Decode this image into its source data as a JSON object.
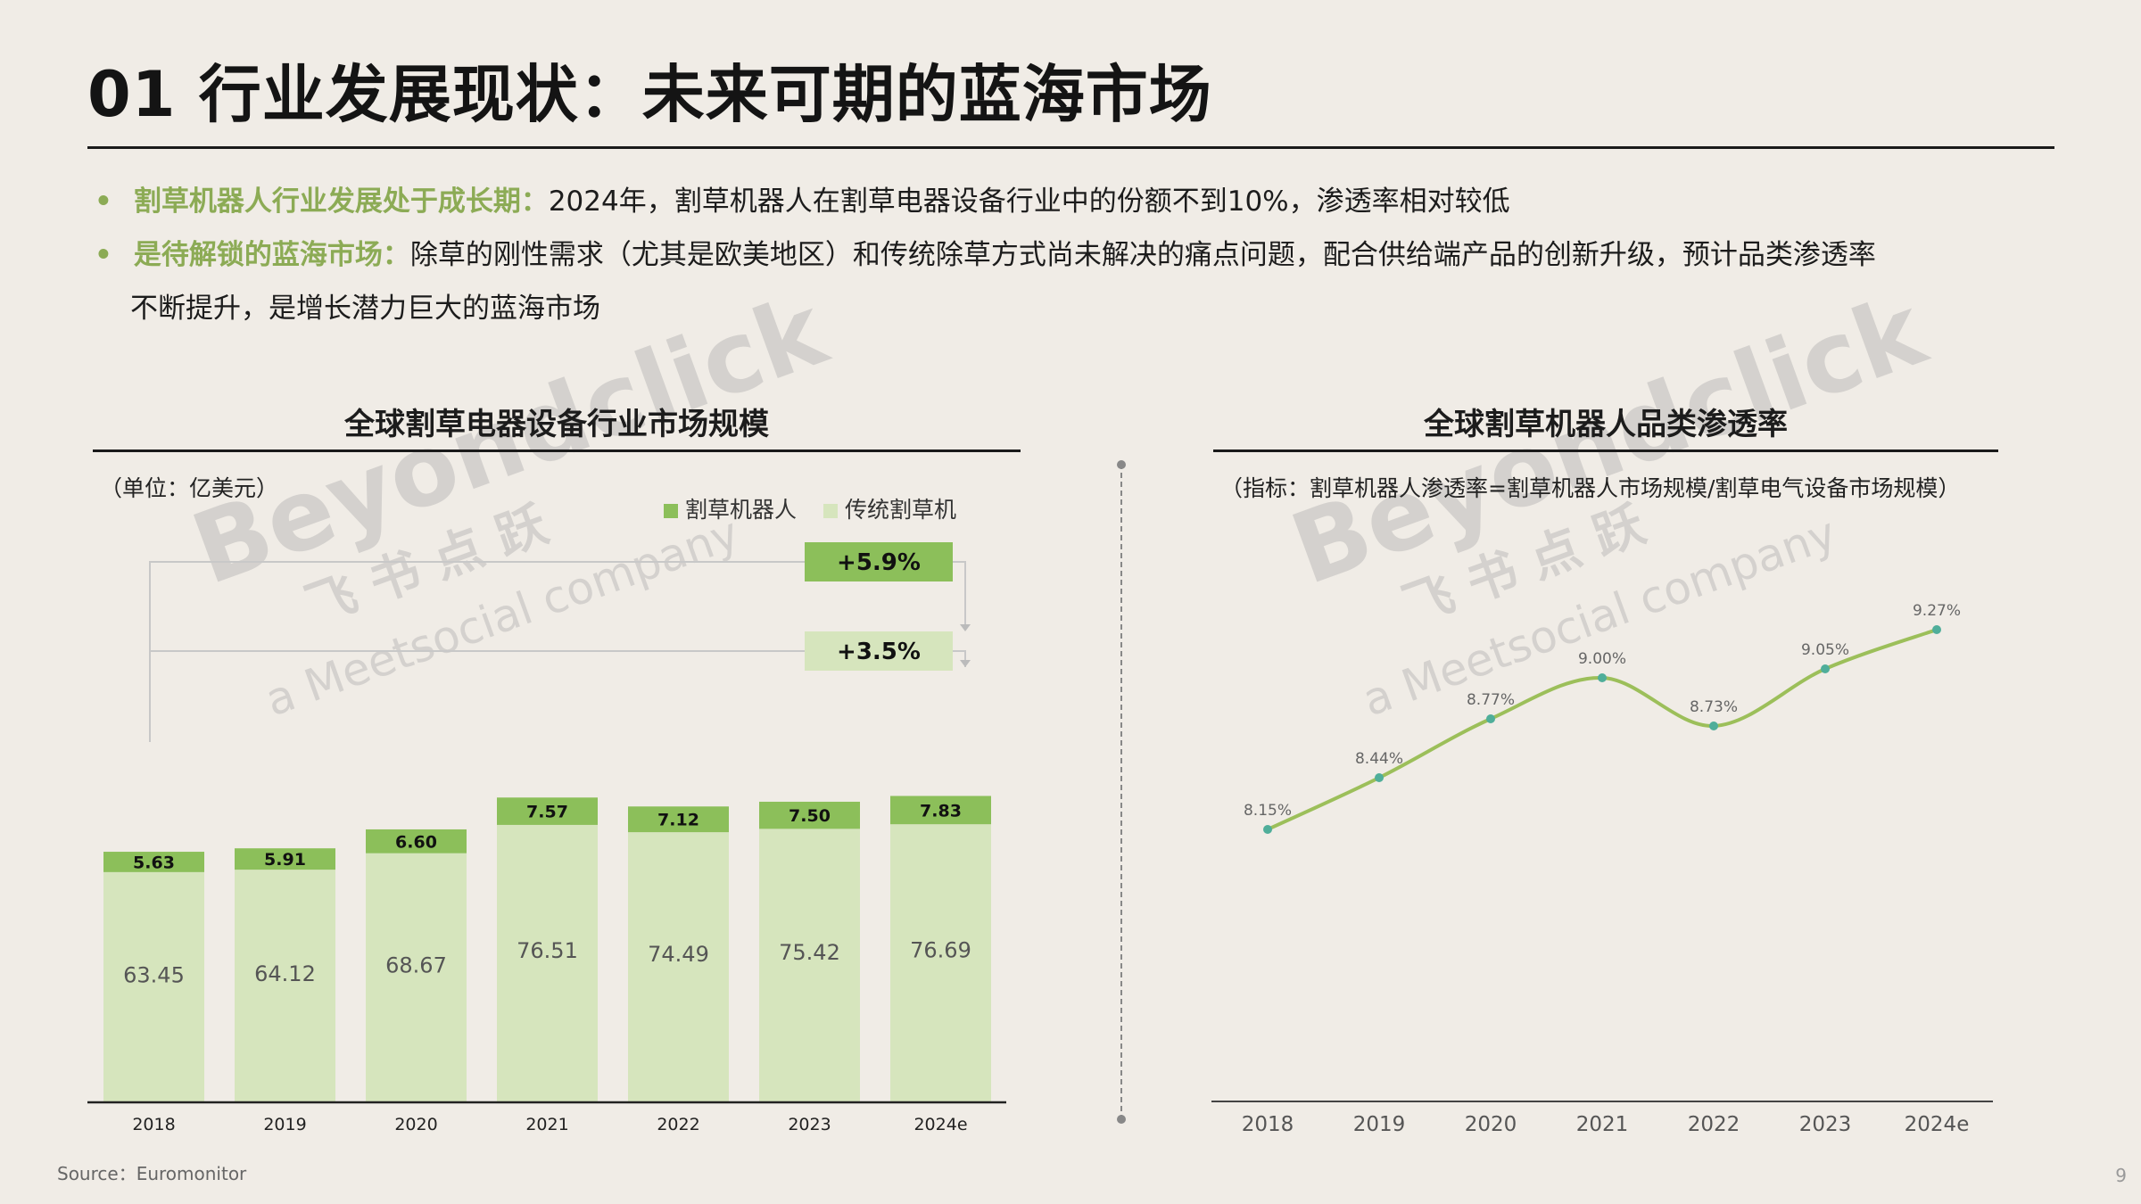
{
  "header": {
    "title": "01 行业发展现状：未来可期的蓝海市场"
  },
  "bullets": [
    {
      "highlight": "割草机器人行业发展处于成长期：",
      "text": "2024年，割草机器人在割草电器设备行业中的份额不到10%，渗透率相对较低"
    },
    {
      "highlight": "是待解锁的蓝海市场：",
      "text": "除草的刚性需求（尤其是欧美地区）和传统除草方式尚未解决的痛点问题，配合供给端产品的创新升级，预计品类渗透率",
      "text2": "不断提升，是增长潜力巨大的蓝海市场"
    }
  ],
  "watermark": {
    "brand": "Beyondclick",
    "cn": "飞 书 点 跃",
    "sub": "a Meetsocial company"
  },
  "left_chart": {
    "title": "全球割草电器设备行业市场规模",
    "unit_note": "（单位：亿美元）",
    "legend": [
      {
        "label": "割草机器人",
        "color": "#8cbf5a"
      },
      {
        "label": "传统割草机",
        "color": "#d6e5bd"
      }
    ],
    "growth_labels": [
      "+5.9%",
      "+3.5%"
    ]
  },
  "right_chart": {
    "title": "全球割草机器人品类渗透率",
    "note": "（指标：割草机器人渗透率=割草机器人市场规模/割草电气设备市场规模）"
  },
  "chart_data": [
    {
      "type": "bar",
      "stacked": true,
      "title": "全球割草电器设备行业市场规模",
      "categories": [
        "2018",
        "2019",
        "2020",
        "2021",
        "2022",
        "2023",
        "2024e"
      ],
      "series": [
        {
          "name": "传统割草机",
          "values": [
            63.45,
            64.12,
            68.67,
            76.51,
            74.49,
            75.42,
            76.69
          ],
          "color": "#d6e5bd"
        },
        {
          "name": "割草机器人",
          "values": [
            5.63,
            5.91,
            6.6,
            7.57,
            7.12,
            7.5,
            7.83
          ],
          "color": "#8cbf5a"
        }
      ],
      "value_labels_bottom": [
        "63.45",
        "64.12",
        "68.67",
        "76.51",
        "74.49",
        "75.42",
        "76.69"
      ],
      "value_labels_top": [
        "5.63",
        "5.91",
        "6.60",
        "7.57",
        "7.12",
        "7.50",
        "7.83"
      ],
      "ylim": [
        0,
        95
      ]
    },
    {
      "type": "line",
      "title": "全球割草机器人品类渗透率",
      "categories": [
        "2018",
        "2019",
        "2020",
        "2021",
        "2022",
        "2023",
        "2024e"
      ],
      "values": [
        8.15,
        8.44,
        8.77,
        9.0,
        8.73,
        9.05,
        9.27
      ],
      "labels": [
        "8.15%",
        "8.44%",
        "8.77%",
        "9.00%",
        "8.73%",
        "9.05%",
        "9.27%"
      ],
      "ylim": [
        7.2,
        9.6
      ],
      "color": "#9cbf5a"
    }
  ],
  "footer": {
    "source": "Source：Euromonitor",
    "page": "9"
  }
}
